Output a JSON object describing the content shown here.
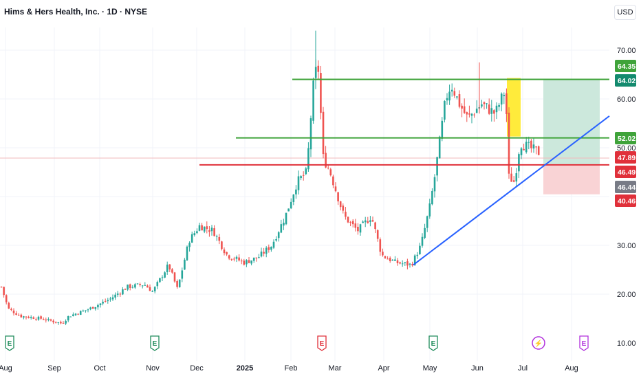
{
  "header": {
    "symbol_title": "Hims & Hers Health, Inc. · 1D · NYSE",
    "currency_button": "USD"
  },
  "colors": {
    "up": "#26a69a",
    "down": "#ef5350",
    "resistance_line": "#3fa33a",
    "support_line": "#e0303a",
    "trendline": "#2962ff",
    "highlight": "#ffeb3b",
    "target_zone": "#cce8dc",
    "stop_zone": "#f9d3d5",
    "earnings_green": "#1e8b5a",
    "earnings_red": "#e0303a",
    "earnings_purple": "#b02fdc",
    "grid": "#f0f3fa"
  },
  "chart_data": {
    "type": "candlestick",
    "title": "Hims & Hers Health, Inc. · 1D · NYSE",
    "y_unit": "USD",
    "ylim": [
      9.5,
      76
    ],
    "y_ticks": [
      "70.00",
      "60.00",
      "50.00",
      "30.00",
      "20.00",
      "10.00"
    ],
    "x_ticks": [
      "Aug",
      "Sep",
      "Oct",
      "Nov",
      "Dec",
      "2025",
      "Feb",
      "Mar",
      "Apr",
      "May",
      "Jun",
      "Jul",
      "Aug"
    ],
    "approx_price_path": [
      {
        "date": "Aug",
        "price": 21.5
      },
      {
        "date": "Sep",
        "price": 14.5
      },
      {
        "date": "Oct",
        "price": 18.5
      },
      {
        "date": "Nov",
        "price": 23.0
      },
      {
        "date": "Dec",
        "price": 34.0
      },
      {
        "date": "2025",
        "price": 27.0
      },
      {
        "date": "Feb",
        "price": 43.0
      },
      {
        "date": "Feb",
        "price": 68.0
      },
      {
        "date": "Mar",
        "price": 45.0
      },
      {
        "date": "Apr",
        "price": 34.0
      },
      {
        "date": "Apr",
        "price": 26.0
      },
      {
        "date": "May",
        "price": 40.0
      },
      {
        "date": "May",
        "price": 63.0
      },
      {
        "date": "Jun",
        "price": 56.0
      },
      {
        "date": "Jun",
        "price": 60.0
      },
      {
        "date": "Jul",
        "price": 42.0
      },
      {
        "date": "Jul",
        "price": 50.0
      }
    ],
    "horizontal_levels": [
      {
        "price": 64.02,
        "color": "#3fa33a"
      },
      {
        "price": 52.02,
        "color": "#3fa33a"
      },
      {
        "price": 46.49,
        "color": "#e0303a"
      }
    ],
    "trendline": {
      "from": {
        "date": "Apr",
        "price": 26.0
      },
      "to": {
        "date": "Aug",
        "price": 56.5
      },
      "color": "#2962ff"
    },
    "position_tool": {
      "entry": 46.49,
      "target": 64.02,
      "stop": 40.46
    },
    "price_labels": [
      {
        "text": "64.35",
        "color": "#3fa33a"
      },
      {
        "text": "64.02",
        "color": "#138a6e"
      },
      {
        "text": "52.02",
        "color": "#3fa33a"
      },
      {
        "text": "47.89",
        "color": "#e0303a"
      },
      {
        "text": "46.49",
        "color": "#e0303a"
      },
      {
        "text": "46.44",
        "color": "#787b86"
      },
      {
        "text": "40.46",
        "color": "#e0303a"
      }
    ],
    "events": [
      {
        "letter": "E",
        "kind": "earnings",
        "color": "#1e8b5a"
      },
      {
        "letter": "E",
        "kind": "earnings",
        "color": "#1e8b5a"
      },
      {
        "letter": "E",
        "kind": "earnings",
        "color": "#e0303a"
      },
      {
        "letter": "E",
        "kind": "earnings",
        "color": "#1e8b5a"
      },
      {
        "letter": "⚡",
        "kind": "news",
        "color": "#b02fdc"
      },
      {
        "letter": "E",
        "kind": "earnings",
        "color": "#b02fdc"
      }
    ],
    "grid": true
  }
}
